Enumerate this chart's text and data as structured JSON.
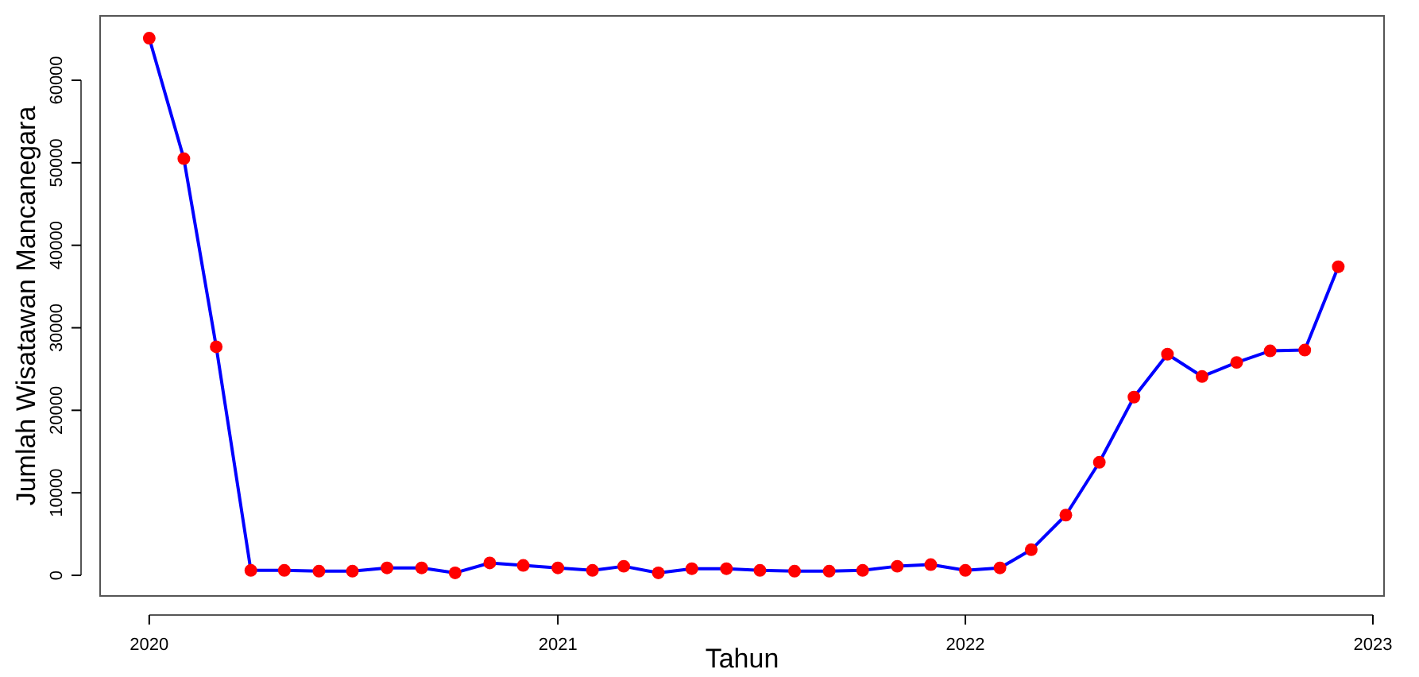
{
  "chart_data": {
    "type": "line",
    "xlabel": "Tahun",
    "ylabel": "Jumlah Wisatawan Mancanegara",
    "x": [
      "2020-01",
      "2020-02",
      "2020-03",
      "2020-04",
      "2020-05",
      "2020-06",
      "2020-07",
      "2020-08",
      "2020-09",
      "2020-10",
      "2020-11",
      "2020-12",
      "2021-01",
      "2021-02",
      "2021-03",
      "2021-04",
      "2021-05",
      "2021-06",
      "2021-07",
      "2021-08",
      "2021-09",
      "2021-10",
      "2021-11",
      "2021-12",
      "2022-01",
      "2022-02",
      "2022-03",
      "2022-04",
      "2022-05",
      "2022-06",
      "2022-07",
      "2022-08",
      "2022-09",
      "2022-10",
      "2022-11",
      "2022-12"
    ],
    "series": [
      {
        "color": "#0000ff",
        "values": [
          65100,
          50500,
          27700,
          600,
          600,
          500,
          500,
          900,
          900,
          300,
          1500,
          1200,
          900,
          600,
          1100,
          300,
          800,
          800,
          600,
          500,
          500,
          600,
          1100,
          1300,
          600,
          900,
          3100,
          7300,
          13700,
          21600,
          26800,
          24100,
          25800,
          27200,
          27300,
          37400
        ]
      }
    ],
    "marker": "circle",
    "line_style": "solid",
    "grid": false,
    "xlim": [
      "2019-11-18",
      "2023-01-11"
    ],
    "xticks": [
      {
        "value": "2020",
        "label": "2020"
      },
      {
        "value": "2021",
        "label": "2021"
      },
      {
        "value": "2022",
        "label": "2022"
      },
      {
        "value": "2023",
        "label": "2023"
      }
    ],
    "ylim": [
      -2500,
      67800
    ],
    "yticks": [
      0,
      10000,
      20000,
      30000,
      40000,
      50000,
      60000
    ]
  }
}
